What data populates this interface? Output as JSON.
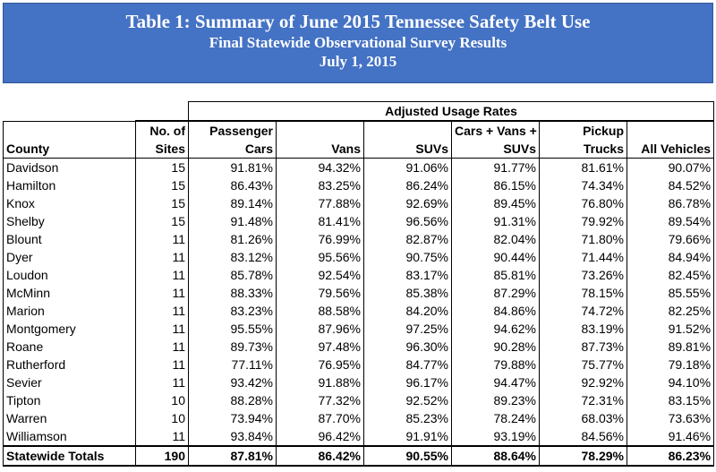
{
  "title": {
    "line1": "Table 1: Summary of June 2015 Tennessee Safety Belt Use",
    "line2": "Final Statewide Observational Survey Results",
    "line3": "July 1, 2015"
  },
  "table": {
    "group_header": "Adjusted Usage Rates",
    "headers": {
      "county": "County",
      "sites_top": "No. of",
      "sites_bottom": "Sites",
      "pc_top": "Passenger",
      "pc_bottom": "Cars",
      "vans": "Vans",
      "suvs": "SUVs",
      "cvs_top": "Cars + Vans +",
      "cvs_bottom": "SUVs",
      "pickup_top": "Pickup",
      "pickup_bottom": "Trucks",
      "all": "All Vehicles"
    },
    "rows": [
      {
        "county": "Davidson",
        "sites": "15",
        "pc": "91.81%",
        "vans": "94.32%",
        "suvs": "91.06%",
        "cvs": "91.77%",
        "pickup": "81.61%",
        "all": "90.07%"
      },
      {
        "county": "Hamilton",
        "sites": "15",
        "pc": "86.43%",
        "vans": "83.25%",
        "suvs": "86.24%",
        "cvs": "86.15%",
        "pickup": "74.34%",
        "all": "84.52%"
      },
      {
        "county": "Knox",
        "sites": "15",
        "pc": "89.14%",
        "vans": "77.88%",
        "suvs": "92.69%",
        "cvs": "89.45%",
        "pickup": "76.80%",
        "all": "86.78%"
      },
      {
        "county": "Shelby",
        "sites": "15",
        "pc": "91.48%",
        "vans": "81.41%",
        "suvs": "96.56%",
        "cvs": "91.31%",
        "pickup": "79.92%",
        "all": "89.54%"
      },
      {
        "county": "Blount",
        "sites": "11",
        "pc": "81.26%",
        "vans": "76.99%",
        "suvs": "82.87%",
        "cvs": "82.04%",
        "pickup": "71.80%",
        "all": "79.66%"
      },
      {
        "county": "Dyer",
        "sites": "11",
        "pc": "83.12%",
        "vans": "95.56%",
        "suvs": "90.75%",
        "cvs": "90.44%",
        "pickup": "71.44%",
        "all": "84.94%"
      },
      {
        "county": "Loudon",
        "sites": "11",
        "pc": "85.78%",
        "vans": "92.54%",
        "suvs": "83.17%",
        "cvs": "85.81%",
        "pickup": "73.26%",
        "all": "82.45%"
      },
      {
        "county": "McMinn",
        "sites": "11",
        "pc": "88.33%",
        "vans": "79.56%",
        "suvs": "85.38%",
        "cvs": "87.29%",
        "pickup": "78.15%",
        "all": "85.55%"
      },
      {
        "county": "Marion",
        "sites": "11",
        "pc": "83.23%",
        "vans": "88.58%",
        "suvs": "84.20%",
        "cvs": "84.86%",
        "pickup": "74.72%",
        "all": "82.25%"
      },
      {
        "county": "Montgomery",
        "sites": "11",
        "pc": "95.55%",
        "vans": "87.96%",
        "suvs": "97.25%",
        "cvs": "94.62%",
        "pickup": "83.19%",
        "all": "91.52%"
      },
      {
        "county": "Roane",
        "sites": "11",
        "pc": "89.73%",
        "vans": "97.48%",
        "suvs": "96.30%",
        "cvs": "90.28%",
        "pickup": "87.73%",
        "all": "89.81%"
      },
      {
        "county": "Rutherford",
        "sites": "11",
        "pc": "77.11%",
        "vans": "76.95%",
        "suvs": "84.77%",
        "cvs": "79.88%",
        "pickup": "75.77%",
        "all": "79.18%"
      },
      {
        "county": "Sevier",
        "sites": "11",
        "pc": "93.42%",
        "vans": "91.88%",
        "suvs": "96.17%",
        "cvs": "94.47%",
        "pickup": "92.92%",
        "all": "94.10%"
      },
      {
        "county": "Tipton",
        "sites": "10",
        "pc": "88.28%",
        "vans": "77.32%",
        "suvs": "92.52%",
        "cvs": "89.23%",
        "pickup": "72.31%",
        "all": "83.15%"
      },
      {
        "county": "Warren",
        "sites": "10",
        "pc": "73.94%",
        "vans": "87.70%",
        "suvs": "85.23%",
        "cvs": "78.24%",
        "pickup": "68.03%",
        "all": "73.63%"
      },
      {
        "county": "Williamson",
        "sites": "11",
        "pc": "93.84%",
        "vans": "96.42%",
        "suvs": "91.91%",
        "cvs": "93.19%",
        "pickup": "84.56%",
        "all": "91.46%"
      }
    ],
    "totals": {
      "county": "Statewide Totals",
      "sites": "190",
      "pc": "87.81%",
      "vans": "86.42%",
      "suvs": "90.55%",
      "cvs": "88.64%",
      "pickup": "78.29%",
      "all": "86.23%"
    }
  },
  "colors": {
    "banner": "#4472c4",
    "banner_text": "#ffffff"
  }
}
